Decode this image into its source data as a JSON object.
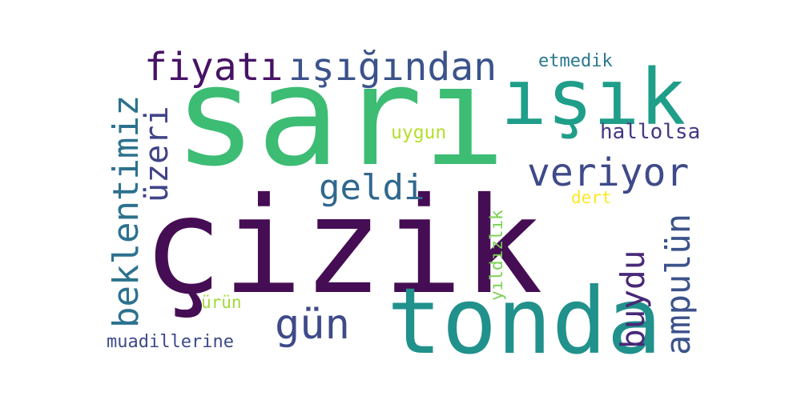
{
  "words": [
    {
      "id": "sari",
      "text": "sarı",
      "color": "#3dbc74",
      "orientation": "horizontal"
    },
    {
      "id": "cizik",
      "text": "çizik",
      "color": "#450d54",
      "orientation": "horizontal"
    },
    {
      "id": "isik",
      "text": "ışık",
      "color": "#1f9e89",
      "orientation": "horizontal"
    },
    {
      "id": "tonda",
      "text": "tonda",
      "color": "#21918c",
      "orientation": "horizontal"
    },
    {
      "id": "fiyati",
      "text": "fiyatı",
      "color": "#471365",
      "orientation": "horizontal"
    },
    {
      "id": "isigindan",
      "text": "ışığından",
      "color": "#3b528b",
      "orientation": "horizontal"
    },
    {
      "id": "veriyor",
      "text": "veriyor",
      "color": "#3e4a89",
      "orientation": "horizontal"
    },
    {
      "id": "geldi",
      "text": "geldi",
      "color": "#31688e",
      "orientation": "horizontal"
    },
    {
      "id": "gun",
      "text": "gün",
      "color": "#3e4a89",
      "orientation": "horizontal"
    },
    {
      "id": "etmedik",
      "text": "etmedik",
      "color": "#2a788e",
      "orientation": "horizontal"
    },
    {
      "id": "hallolsa",
      "text": "hallolsa",
      "color": "#443983",
      "orientation": "horizontal"
    },
    {
      "id": "uygun",
      "text": "uygun",
      "color": "#b5de2b",
      "orientation": "horizontal"
    },
    {
      "id": "dert",
      "text": "dert",
      "color": "#fde725",
      "orientation": "horizontal"
    },
    {
      "id": "urun",
      "text": "ürün",
      "color": "#a0da39",
      "orientation": "horizontal"
    },
    {
      "id": "muadillerine",
      "text": "muadillerine",
      "color": "#3e4a89",
      "orientation": "horizontal"
    },
    {
      "id": "beklentimiz",
      "text": "beklentimiz",
      "color": "#2c728e",
      "orientation": "vertical"
    },
    {
      "id": "uzeri",
      "text": "üzeri",
      "color": "#414487",
      "orientation": "vertical"
    },
    {
      "id": "buydu",
      "text": "buydu",
      "color": "#482878",
      "orientation": "vertical"
    },
    {
      "id": "ampulun",
      "text": "ampulün",
      "color": "#3b528b",
      "orientation": "vertical"
    },
    {
      "id": "yildizlik",
      "text": "yıldızlık",
      "color": "#7ad151",
      "orientation": "vertical"
    }
  ]
}
